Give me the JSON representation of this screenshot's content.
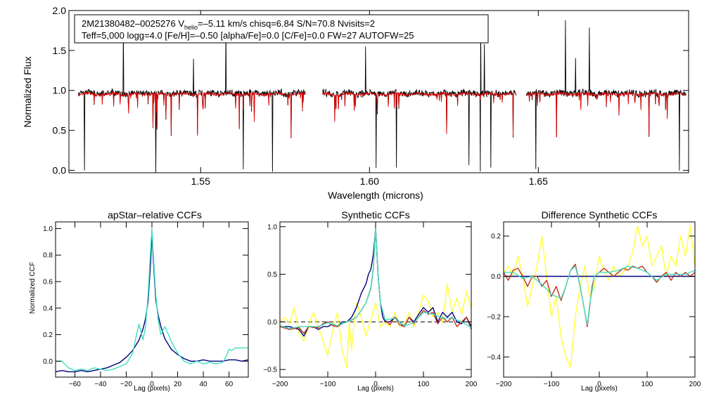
{
  "chart_data": [
    {
      "id": "spectrum",
      "type": "line",
      "xlabel": "Wavelength (microns)",
      "ylabel": "Normalized Flux",
      "xlim": [
        1.511,
        1.6945
      ],
      "ylim": [
        -0.03,
        2.0
      ],
      "xticks": [
        1.55,
        1.6,
        1.65
      ],
      "xtick_labels": [
        "1.55",
        "1.60",
        "1.65"
      ],
      "yticks": [
        0.0,
        0.5,
        1.0,
        1.5,
        2.0
      ],
      "ytick_labels": [
        "0.0",
        "0.5",
        "1.0",
        "1.5",
        "2.0"
      ],
      "chip_ranges": [
        [
          1.5138,
          1.581
        ],
        [
          1.586,
          1.6435
        ],
        [
          1.6465,
          1.6937
        ]
      ],
      "annotation": {
        "line1_a": "2M21380482–0025276  V",
        "line1_sub": "helio",
        "line1_b": "=–5.11 km/s  chisq=6.84  S/N=70.8  Nvisits=2",
        "line2": "Teff=5,000 logg=4.0 [Fe/H]=–0.50 [alpha/Fe]=0.0 [C/Fe]=0.0 FW=27 AUTOFW=25"
      },
      "series": [
        {
          "name": "observed",
          "color": "#000000"
        },
        {
          "name": "model",
          "color": "#e00000"
        }
      ]
    },
    {
      "id": "ccf_apstar",
      "type": "line",
      "title": "apStar–relative CCFs",
      "xlabel": "Lag (pixels)",
      "ylabel": "Normalized CCF",
      "xlim": [
        -75,
        75
      ],
      "ylim": [
        -0.12,
        1.05
      ],
      "xticks": [
        -60,
        -40,
        -20,
        0,
        20,
        40,
        60
      ],
      "xtick_labels": [
        "−60",
        "−40",
        "−20",
        "0",
        "20",
        "40",
        "60"
      ],
      "yticks": [
        0.0,
        0.2,
        0.4,
        0.6,
        0.8,
        1.0
      ],
      "ytick_labels": [
        "0.0",
        "0.2",
        "0.4",
        "0.6",
        "0.8",
        "1.0"
      ],
      "series": [
        {
          "name": "combined",
          "color": "#00007f",
          "x": [
            -75,
            -70,
            -65,
            -60,
            -55,
            -50,
            -45,
            -40,
            -35,
            -30,
            -25,
            -20,
            -15,
            -10,
            -7,
            -5,
            -3,
            -1,
            0,
            1,
            3,
            5,
            7,
            10,
            15,
            20,
            25,
            30,
            35,
            40,
            45,
            50,
            55,
            60,
            65,
            70,
            75
          ],
          "y": [
            -0.08,
            -0.07,
            -0.08,
            -0.08,
            -0.07,
            -0.08,
            -0.07,
            -0.06,
            -0.05,
            -0.03,
            -0.01,
            0.03,
            0.08,
            0.16,
            0.24,
            0.32,
            0.45,
            0.75,
            0.98,
            0.78,
            0.46,
            0.34,
            0.26,
            0.17,
            0.09,
            0.05,
            0.02,
            0.0,
            0.0,
            0.01,
            0.0,
            0.0,
            0.0,
            0.01,
            0.01,
            0.0,
            0.01
          ]
        },
        {
          "name": "visit",
          "color": "#3ee0c0",
          "x": [
            -75,
            -70,
            -65,
            -60,
            -55,
            -50,
            -45,
            -40,
            -35,
            -30,
            -25,
            -20,
            -15,
            -12,
            -10,
            -7,
            -5,
            -3,
            -1,
            0,
            1,
            3,
            5,
            7,
            10,
            12,
            15,
            20,
            25,
            30,
            35,
            40,
            45,
            50,
            55,
            58,
            60,
            62,
            65,
            70,
            75
          ],
          "y": [
            0.0,
            0.0,
            -0.05,
            -0.07,
            -0.06,
            -0.07,
            -0.05,
            -0.06,
            -0.07,
            -0.06,
            -0.04,
            -0.02,
            0.06,
            0.2,
            0.28,
            0.16,
            0.26,
            0.5,
            0.85,
            1.0,
            0.82,
            0.5,
            0.3,
            0.2,
            0.26,
            0.22,
            0.15,
            0.06,
            0.0,
            -0.02,
            0.0,
            -0.02,
            -0.01,
            -0.02,
            -0.01,
            0.04,
            0.09,
            0.08,
            0.1,
            0.1,
            0.1
          ]
        }
      ]
    },
    {
      "id": "ccf_synth",
      "type": "line",
      "title": "Synthetic CCFs",
      "xlabel": "Lag (pixels)",
      "xlim": [
        -200,
        200
      ],
      "ylim": [
        -0.58,
        1.05
      ],
      "xticks": [
        -200,
        -100,
        0,
        100,
        200
      ],
      "xtick_labels": [
        "−200",
        "−100",
        "0",
        "100",
        "200"
      ],
      "yticks": [
        -0.5,
        0.0,
        0.5,
        1.0
      ],
      "ytick_labels": [
        "−0.5",
        "0.0",
        "0.5",
        "1.0"
      ],
      "zero_line": true,
      "series": [
        {
          "name": "yellow",
          "color": "#ffff3a",
          "x": [
            -200,
            -190,
            -180,
            -170,
            -160,
            -150,
            -140,
            -130,
            -120,
            -110,
            -100,
            -90,
            -80,
            -70,
            -60,
            -55,
            -50,
            -45,
            -40,
            -30,
            -20,
            -10,
            0,
            10,
            20,
            30,
            40,
            50,
            60,
            70,
            80,
            90,
            100,
            110,
            120,
            130,
            140,
            150,
            160,
            170,
            180,
            190,
            200
          ],
          "y": [
            0.0,
            0.05,
            -0.02,
            0.15,
            -0.12,
            -0.2,
            -0.05,
            0.1,
            -0.05,
            -0.2,
            -0.35,
            -0.1,
            0.1,
            -0.3,
            -0.48,
            0.0,
            -0.3,
            0.0,
            0.2,
            0.05,
            -0.15,
            0.02,
            0.2,
            -0.05,
            0.0,
            -0.05,
            0.1,
            -0.05,
            -0.02,
            0.1,
            -0.05,
            0.1,
            0.28,
            0.22,
            0.05,
            0.1,
            0.0,
            0.4,
            0.1,
            0.25,
            0.08,
            0.32,
            0.15
          ]
        },
        {
          "name": "blue",
          "color": "#00007f",
          "x": [
            -200,
            -180,
            -160,
            -150,
            -140,
            -130,
            -120,
            -110,
            -100,
            -90,
            -80,
            -70,
            -60,
            -50,
            -40,
            -30,
            -20,
            -15,
            -10,
            -5,
            -2,
            0,
            2,
            5,
            10,
            15,
            20,
            30,
            40,
            50,
            60,
            70,
            80,
            90,
            100,
            110,
            120,
            130,
            140,
            150,
            160,
            170,
            180,
            190,
            200
          ],
          "y": [
            -0.05,
            -0.05,
            -0.08,
            -0.15,
            -0.05,
            -0.05,
            -0.08,
            -0.05,
            -0.05,
            -0.02,
            -0.05,
            0.0,
            0.0,
            0.05,
            0.15,
            0.3,
            0.4,
            0.5,
            0.55,
            0.7,
            0.85,
            0.98,
            0.8,
            0.5,
            0.2,
            0.05,
            0.0,
            0.0,
            0.05,
            0.0,
            -0.05,
            0.05,
            0.0,
            0.08,
            0.15,
            0.1,
            0.15,
            0.0,
            0.1,
            0.05,
            0.1,
            0.0,
            -0.02,
            0.05,
            -0.05
          ]
        },
        {
          "name": "red",
          "color": "#c03020",
          "x": [
            -200,
            -180,
            -160,
            -150,
            -140,
            -130,
            -120,
            -110,
            -100,
            -90,
            -80,
            -70,
            -60,
            -50,
            -40,
            -30,
            -20,
            -10,
            -5,
            -2,
            0,
            2,
            5,
            10,
            20,
            30,
            40,
            50,
            60,
            70,
            80,
            90,
            100,
            110,
            120,
            130,
            140,
            150,
            160,
            170,
            180,
            190,
            200
          ],
          "y": [
            -0.05,
            -0.08,
            -0.06,
            -0.12,
            -0.05,
            -0.06,
            -0.06,
            -0.02,
            0.0,
            -0.04,
            -0.05,
            -0.02,
            0.0,
            0.02,
            0.05,
            0.12,
            0.2,
            0.35,
            0.55,
            0.8,
            1.0,
            0.8,
            0.5,
            0.2,
            0.02,
            -0.03,
            0.05,
            -0.03,
            -0.05,
            0.05,
            -0.02,
            0.05,
            0.12,
            0.08,
            0.1,
            -0.02,
            0.05,
            0.0,
            0.05,
            -0.05,
            0.0,
            0.05,
            -0.08
          ]
        },
        {
          "name": "cyan",
          "color": "#3ee0c0",
          "x": [
            -200,
            -180,
            -160,
            -140,
            -120,
            -100,
            -80,
            -60,
            -40,
            -30,
            -20,
            -10,
            -5,
            -2,
            0,
            2,
            5,
            10,
            20,
            40,
            60,
            80,
            100,
            120,
            140,
            160,
            180,
            200
          ],
          "y": [
            -0.04,
            -0.07,
            -0.05,
            -0.05,
            -0.05,
            -0.01,
            -0.04,
            0.0,
            0.05,
            0.12,
            0.2,
            0.36,
            0.56,
            0.8,
            1.0,
            0.8,
            0.5,
            0.2,
            0.02,
            0.04,
            -0.04,
            -0.01,
            0.1,
            0.08,
            0.04,
            0.04,
            0.0,
            -0.06
          ]
        }
      ]
    },
    {
      "id": "ccf_diff",
      "type": "line",
      "title": "Difference Synthetic CCFs",
      "xlabel": "Lag (pixels)",
      "xlim": [
        -200,
        200
      ],
      "ylim": [
        -0.5,
        0.27
      ],
      "xticks": [
        -200,
        -100,
        0,
        100,
        200
      ],
      "xtick_labels": [
        "−200",
        "−100",
        "0",
        "100",
        "200"
      ],
      "yticks": [
        -0.4,
        -0.2,
        0.0,
        0.2
      ],
      "ytick_labels": [
        "−0.4",
        "−0.2",
        "0.0",
        "0.2"
      ],
      "series": [
        {
          "name": "yellow",
          "color": "#ffff3a",
          "x": [
            -200,
            -190,
            -180,
            -170,
            -160,
            -150,
            -140,
            -130,
            -120,
            -110,
            -100,
            -90,
            -80,
            -70,
            -60,
            -50,
            -40,
            -30,
            -20,
            -10,
            0,
            10,
            20,
            30,
            40,
            50,
            60,
            70,
            80,
            90,
            100,
            110,
            120,
            130,
            140,
            150,
            160,
            170,
            180,
            190,
            200
          ],
          "y": [
            0.02,
            0.05,
            0.0,
            0.1,
            0.0,
            -0.15,
            -0.05,
            0.05,
            0.2,
            0.0,
            -0.2,
            -0.1,
            -0.3,
            -0.4,
            -0.45,
            -0.2,
            -0.05,
            0.05,
            -0.1,
            -0.05,
            0.1,
            0.02,
            -0.02,
            0.05,
            0.0,
            0.02,
            0.05,
            0.12,
            0.25,
            0.15,
            0.2,
            0.05,
            0.1,
            0.15,
            0.0,
            0.1,
            0.05,
            0.2,
            0.1,
            0.25,
            0.05
          ]
        },
        {
          "name": "blue",
          "color": "#00007f",
          "x": [
            -200,
            200
          ],
          "y": [
            0.0,
            0.0
          ]
        },
        {
          "name": "red",
          "color": "#c03020",
          "x": [
            -200,
            -190,
            -180,
            -170,
            -160,
            -150,
            -140,
            -130,
            -120,
            -110,
            -100,
            -90,
            -80,
            -70,
            -60,
            -50,
            -40,
            -30,
            -25,
            -20,
            -15,
            -10,
            0,
            10,
            20,
            30,
            40,
            50,
            60,
            70,
            80,
            90,
            100,
            110,
            120,
            130,
            140,
            150,
            160,
            170,
            180,
            190,
            200
          ],
          "y": [
            0.02,
            -0.02,
            0.03,
            0.04,
            0.0,
            -0.05,
            0.0,
            0.0,
            -0.05,
            -0.02,
            -0.1,
            -0.05,
            -0.12,
            -0.05,
            0.03,
            0.06,
            -0.05,
            -0.18,
            -0.25,
            -0.15,
            -0.05,
            0.0,
            0.02,
            0.04,
            0.02,
            0.0,
            0.02,
            0.04,
            0.03,
            0.05,
            0.04,
            0.05,
            0.02,
            0.0,
            -0.03,
            0.0,
            0.02,
            -0.02,
            0.02,
            0.0,
            0.02,
            0.0,
            0.02
          ]
        },
        {
          "name": "cyan",
          "color": "#3ee0c0",
          "x": [
            -200,
            -180,
            -160,
            -140,
            -120,
            -100,
            -80,
            -70,
            -60,
            -50,
            -40,
            -30,
            -25,
            -20,
            -10,
            0,
            20,
            40,
            60,
            80,
            100,
            120,
            140,
            160,
            180,
            200
          ],
          "y": [
            0.02,
            0.02,
            -0.01,
            0.0,
            -0.04,
            -0.09,
            -0.11,
            -0.05,
            0.03,
            0.05,
            -0.05,
            -0.18,
            -0.24,
            -0.14,
            0.0,
            0.02,
            0.02,
            0.03,
            0.05,
            0.04,
            0.02,
            -0.02,
            0.01,
            0.01,
            0.01,
            0.03
          ]
        }
      ]
    }
  ]
}
